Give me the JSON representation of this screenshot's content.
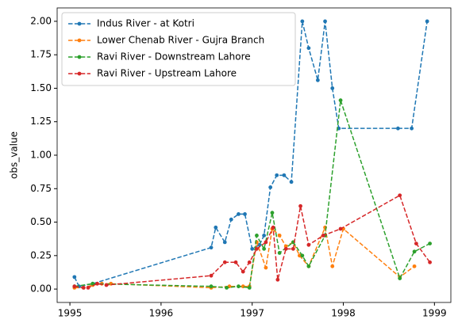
{
  "chart_data": {
    "type": "line",
    "ylabel": "obs_value",
    "xlim": [
      1994.86,
      1999.18
    ],
    "xticks": [
      1995,
      1996,
      1997,
      1998,
      1999
    ],
    "ylim": [
      -0.1,
      2.1
    ],
    "yticks": [
      {
        "value": 0,
        "label": "0.00"
      },
      {
        "value": 0.25,
        "label": "0.25"
      },
      {
        "value": 0.5,
        "label": "0.50"
      },
      {
        "value": 0.75,
        "label": "0.75"
      },
      {
        "value": 1,
        "label": "1.00"
      },
      {
        "value": 1.25,
        "label": "1.25"
      },
      {
        "value": 1.5,
        "label": "1.50"
      },
      {
        "value": 1.75,
        "label": "1.75"
      },
      {
        "value": 2,
        "label": "2.00"
      }
    ],
    "legend": "upper left",
    "series": [
      {
        "name": "Indus River - at Kotri",
        "color": "#1f77b4",
        "x": [
          1995.05,
          1995.1,
          1995.25,
          1996.55,
          1996.6,
          1996.7,
          1996.77,
          1996.85,
          1996.92,
          1997.0,
          1997.08,
          1997.13,
          1997.2,
          1997.27,
          1997.35,
          1997.43,
          1997.55,
          1997.62,
          1997.72,
          1997.8,
          1997.88,
          1997.95,
          1998.6,
          1998.75,
          1998.92
        ],
        "values": [
          0.09,
          0.02,
          0.04,
          0.31,
          0.46,
          0.35,
          0.52,
          0.56,
          0.56,
          0.3,
          0.33,
          0.4,
          0.76,
          0.85,
          0.85,
          0.8,
          2.0,
          1.8,
          1.56,
          2.0,
          1.5,
          1.2,
          1.2,
          1.2,
          2.0
        ]
      },
      {
        "name": "Lower Chenab River - Gujra Branch",
        "color": "#ff7f0e",
        "x": [
          1995.05,
          1995.15,
          1995.25,
          1995.35,
          1995.45,
          1996.55,
          1996.75,
          1996.9,
          1996.97,
          1997.05,
          1997.15,
          1997.22,
          1997.3,
          1997.37,
          1997.45,
          1997.52,
          1997.62,
          1997.8,
          1997.88,
          1998.0,
          1998.62,
          1998.78
        ],
        "values": [
          0.01,
          0.01,
          0.03,
          0.04,
          0.04,
          0.01,
          0.02,
          0.02,
          0.02,
          0.35,
          0.16,
          0.45,
          0.4,
          0.32,
          0.35,
          0.25,
          0.17,
          0.46,
          0.17,
          0.45,
          0.09,
          0.17
        ]
      },
      {
        "name": "Ravi River - Downstream Lahore",
        "color": "#2ca02c",
        "x": [
          1995.05,
          1995.25,
          1996.55,
          1996.72,
          1996.85,
          1996.97,
          1997.05,
          1997.13,
          1997.22,
          1997.3,
          1997.45,
          1997.55,
          1997.62,
          1997.8,
          1997.97,
          1998.62,
          1998.78,
          1998.95
        ],
        "values": [
          0.02,
          0.04,
          0.02,
          0.01,
          0.02,
          0.01,
          0.4,
          0.3,
          0.57,
          0.27,
          0.35,
          0.25,
          0.17,
          0.4,
          1.41,
          0.08,
          0.28,
          0.34
        ]
      },
      {
        "name": "Ravi River - Upstream Lahore",
        "color": "#d62728",
        "x": [
          1995.05,
          1995.15,
          1995.2,
          1995.3,
          1995.4,
          1996.55,
          1996.7,
          1996.82,
          1996.9,
          1996.97,
          1997.05,
          1997.15,
          1997.23,
          1997.28,
          1997.37,
          1997.45,
          1997.53,
          1997.62,
          1997.78,
          1997.97,
          1998.62,
          1998.8,
          1998.95
        ],
        "values": [
          0.02,
          0.01,
          0.01,
          0.04,
          0.03,
          0.1,
          0.2,
          0.2,
          0.13,
          0.2,
          0.3,
          0.35,
          0.46,
          0.07,
          0.3,
          0.3,
          0.62,
          0.33,
          0.4,
          0.45,
          0.7,
          0.34,
          0.2
        ]
      }
    ]
  }
}
